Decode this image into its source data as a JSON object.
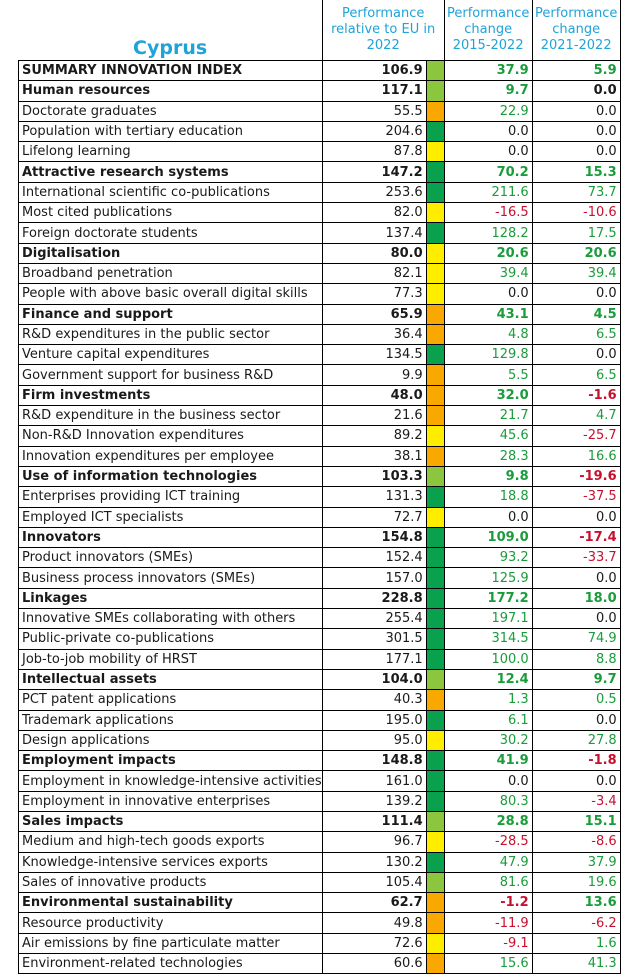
{
  "header": {
    "country": "Cyprus",
    "col_relative": "Performance relative to EU in 2022",
    "col_change_long": "Performance change 2015-2022",
    "col_change_short": "Performance change 2021-2022"
  },
  "colors": {
    "dark_green": "#0aa14e",
    "light_green": "#8cc63f",
    "yellow": "#ffed00",
    "orange": "#f9a800",
    "positive": "#1a9c3a",
    "negative": "#c8102e"
  },
  "rows": [
    {
      "label": "SUMMARY INNOVATION INDEX",
      "rel": "106.9",
      "band": "light_green",
      "c1": "37.9",
      "c2": "5.9",
      "bold": true
    },
    {
      "label": "Human resources",
      "rel": "117.1",
      "band": "light_green",
      "c1": "9.7",
      "c2": "0.0",
      "bold": true
    },
    {
      "label": "Doctorate graduates",
      "rel": "55.5",
      "band": "orange",
      "c1": "22.9",
      "c2": "0.0",
      "bold": false
    },
    {
      "label": "Population with tertiary education",
      "rel": "204.6",
      "band": "dark_green",
      "c1": "0.0",
      "c2": "0.0",
      "bold": false
    },
    {
      "label": "Lifelong learning",
      "rel": "87.8",
      "band": "yellow",
      "c1": "0.0",
      "c2": "0.0",
      "bold": false
    },
    {
      "label": "Attractive research systems",
      "rel": "147.2",
      "band": "dark_green",
      "c1": "70.2",
      "c2": "15.3",
      "bold": true
    },
    {
      "label": "International scientific co-publications",
      "rel": "253.6",
      "band": "dark_green",
      "c1": "211.6",
      "c2": "73.7",
      "bold": false
    },
    {
      "label": "Most cited publications",
      "rel": "82.0",
      "band": "yellow",
      "c1": "-16.5",
      "c2": "-10.6",
      "bold": false
    },
    {
      "label": "Foreign doctorate students",
      "rel": "137.4",
      "band": "dark_green",
      "c1": "128.2",
      "c2": "17.5",
      "bold": false
    },
    {
      "label": "Digitalisation",
      "rel": "80.0",
      "band": "yellow",
      "c1": "20.6",
      "c2": "20.6",
      "bold": true
    },
    {
      "label": "Broadband penetration",
      "rel": "82.1",
      "band": "yellow",
      "c1": "39.4",
      "c2": "39.4",
      "bold": false
    },
    {
      "label": "People with above basic overall digital skills",
      "rel": "77.3",
      "band": "yellow",
      "c1": "0.0",
      "c2": "0.0",
      "bold": false
    },
    {
      "label": "Finance and support",
      "rel": "65.9",
      "band": "orange",
      "c1": "43.1",
      "c2": "4.5",
      "bold": true
    },
    {
      "label": "R&D expenditures in the public sector",
      "rel": "36.4",
      "band": "orange",
      "c1": "4.8",
      "c2": "6.5",
      "bold": false
    },
    {
      "label": "Venture capital expenditures",
      "rel": "134.5",
      "band": "dark_green",
      "c1": "129.8",
      "c2": "0.0",
      "bold": false
    },
    {
      "label": "Government support for business R&D",
      "rel": "9.9",
      "band": "orange",
      "c1": "5.5",
      "c2": "6.5",
      "bold": false
    },
    {
      "label": "Firm investments",
      "rel": "48.0",
      "band": "orange",
      "c1": "32.0",
      "c2": "-1.6",
      "bold": true
    },
    {
      "label": "R&D expenditure in the business sector",
      "rel": "21.6",
      "band": "orange",
      "c1": "21.7",
      "c2": "4.7",
      "bold": false
    },
    {
      "label": "Non-R&D Innovation expenditures",
      "rel": "89.2",
      "band": "yellow",
      "c1": "45.6",
      "c2": "-25.7",
      "bold": false
    },
    {
      "label": "Innovation expenditures per employee",
      "rel": "38.1",
      "band": "orange",
      "c1": "28.3",
      "c2": "16.6",
      "bold": false
    },
    {
      "label": "Use of information technologies",
      "rel": "103.3",
      "band": "light_green",
      "c1": "9.8",
      "c2": "-19.6",
      "bold": true
    },
    {
      "label": "Enterprises providing ICT training",
      "rel": "131.3",
      "band": "dark_green",
      "c1": "18.8",
      "c2": "-37.5",
      "bold": false
    },
    {
      "label": "Employed ICT specialists",
      "rel": "72.7",
      "band": "yellow",
      "c1": "0.0",
      "c2": "0.0",
      "bold": false
    },
    {
      "label": "Innovators",
      "rel": "154.8",
      "band": "dark_green",
      "c1": "109.0",
      "c2": "-17.4",
      "bold": true
    },
    {
      "label": "Product innovators (SMEs)",
      "rel": "152.4",
      "band": "dark_green",
      "c1": "93.2",
      "c2": "-33.7",
      "bold": false
    },
    {
      "label": "Business process innovators (SMEs)",
      "rel": "157.0",
      "band": "dark_green",
      "c1": "125.9",
      "c2": "0.0",
      "bold": false
    },
    {
      "label": "Linkages",
      "rel": "228.8",
      "band": "dark_green",
      "c1": "177.2",
      "c2": "18.0",
      "bold": true
    },
    {
      "label": "Innovative SMEs collaborating with others",
      "rel": "255.4",
      "band": "dark_green",
      "c1": "197.1",
      "c2": "0.0",
      "bold": false
    },
    {
      "label": "Public-private co-publications",
      "rel": "301.5",
      "band": "dark_green",
      "c1": "314.5",
      "c2": "74.9",
      "bold": false
    },
    {
      "label": "Job-to-job mobility of HRST",
      "rel": "177.1",
      "band": "dark_green",
      "c1": "100.0",
      "c2": "8.8",
      "bold": false
    },
    {
      "label": "Intellectual assets",
      "rel": "104.0",
      "band": "light_green",
      "c1": "12.4",
      "c2": "9.7",
      "bold": true
    },
    {
      "label": "PCT patent applications",
      "rel": "40.3",
      "band": "orange",
      "c1": "1.3",
      "c2": "0.5",
      "bold": false
    },
    {
      "label": "Trademark applications",
      "rel": "195.0",
      "band": "dark_green",
      "c1": "6.1",
      "c2": "0.0",
      "bold": false
    },
    {
      "label": "Design applications",
      "rel": "95.0",
      "band": "yellow",
      "c1": "30.2",
      "c2": "27.8",
      "bold": false
    },
    {
      "label": "Employment impacts",
      "rel": "148.8",
      "band": "dark_green",
      "c1": "41.9",
      "c2": "-1.8",
      "bold": true
    },
    {
      "label": "Employment in knowledge-intensive activities",
      "rel": "161.0",
      "band": "dark_green",
      "c1": "0.0",
      "c2": "0.0",
      "bold": false
    },
    {
      "label": "Employment in innovative enterprises",
      "rel": "139.2",
      "band": "dark_green",
      "c1": "80.3",
      "c2": "-3.4",
      "bold": false
    },
    {
      "label": "Sales impacts",
      "rel": "111.4",
      "band": "light_green",
      "c1": "28.8",
      "c2": "15.1",
      "bold": true
    },
    {
      "label": "Medium and high-tech goods exports",
      "rel": "96.7",
      "band": "yellow",
      "c1": "-28.5",
      "c2": "-8.6",
      "bold": false
    },
    {
      "label": "Knowledge-intensive services exports",
      "rel": "130.2",
      "band": "dark_green",
      "c1": "47.9",
      "c2": "37.9",
      "bold": false
    },
    {
      "label": "Sales of innovative products",
      "rel": "105.4",
      "band": "light_green",
      "c1": "81.6",
      "c2": "19.6",
      "bold": false
    },
    {
      "label": "Environmental sustainability",
      "rel": "62.7",
      "band": "orange",
      "c1": "-1.2",
      "c2": "13.6",
      "bold": true
    },
    {
      "label": "Resource productivity",
      "rel": "49.8",
      "band": "orange",
      "c1": "-11.9",
      "c2": "-6.2",
      "bold": false
    },
    {
      "label": "Air emissions by fine particulate matter",
      "rel": "72.6",
      "band": "yellow",
      "c1": "-9.1",
      "c2": "1.6",
      "bold": false
    },
    {
      "label": "Environment-related technologies",
      "rel": "60.6",
      "band": "orange",
      "c1": "15.6",
      "c2": "41.3",
      "bold": false
    }
  ]
}
